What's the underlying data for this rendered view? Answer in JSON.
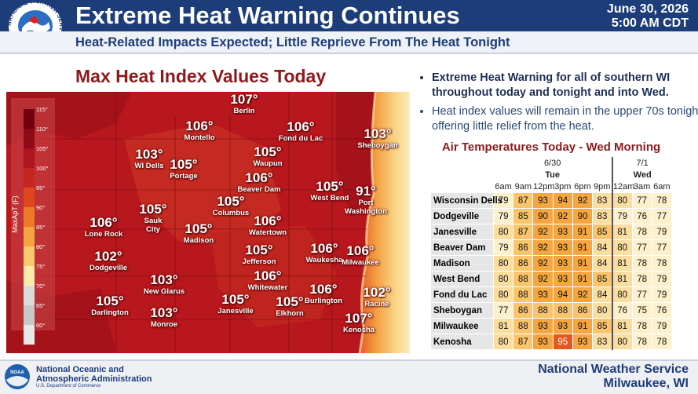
{
  "header": {
    "logo_text": "NATIONAL WEATHER SERVICE",
    "title": "Extreme Heat Warning Continues",
    "subtitle": "Heat-Related Impacts Expected; Little Reprieve From The Heat Tonight",
    "date": "June 30, 2026",
    "time": "5:00 AM CDT"
  },
  "map": {
    "title": "Max Heat Index Values Today",
    "legend": {
      "label": "MaxApT (F)",
      "ticks": [
        "115°",
        "110°",
        "105°",
        "100°",
        "95°",
        "90°",
        "85°",
        "80°",
        "75°",
        "70°",
        "65°",
        "60°"
      ]
    },
    "points": [
      {
        "value": "107°",
        "place": "Berlin"
      },
      {
        "value": "106°",
        "place": "Montello"
      },
      {
        "value": "106°",
        "place": "Fond du Lac"
      },
      {
        "value": "103°",
        "place": "Sheboygan"
      },
      {
        "value": "103°",
        "place": "WI Dells"
      },
      {
        "value": "105°",
        "place": "Portage"
      },
      {
        "value": "105°",
        "place": "Waupun"
      },
      {
        "value": "106°",
        "place": "Beaver Dam"
      },
      {
        "value": "105°",
        "place": "West Bend"
      },
      {
        "value": "91°",
        "place": "Port Washington"
      },
      {
        "value": "105°",
        "place": "Columbus"
      },
      {
        "value": "105°",
        "place": "Sauk City"
      },
      {
        "value": "106°",
        "place": "Lone Rock"
      },
      {
        "value": "106°",
        "place": "Watertown"
      },
      {
        "value": "105°",
        "place": "Madison"
      },
      {
        "value": "102°",
        "place": "Dodgeville"
      },
      {
        "value": "105°",
        "place": "Jefferson"
      },
      {
        "value": "106°",
        "place": "Waukesha"
      },
      {
        "value": "106°",
        "place": "Milwaukee"
      },
      {
        "value": "103°",
        "place": "New Glarus"
      },
      {
        "value": "106°",
        "place": "Whitewater"
      },
      {
        "value": "105°",
        "place": "Darlington"
      },
      {
        "value": "105°",
        "place": "Janesville"
      },
      {
        "value": "105°",
        "place": "Elkhorn"
      },
      {
        "value": "106°",
        "place": "Burlington"
      },
      {
        "value": "102°",
        "place": "Racine"
      },
      {
        "value": "103°",
        "place": "Monroe"
      },
      {
        "value": "107°",
        "place": "Kenosha"
      }
    ]
  },
  "bullets": [
    "Extreme Heat Warning for all of southern WI throughout today and tonight and into Wed.",
    "Heat index values will remain in the upper 70s tonight, offering little relief from the heat."
  ],
  "table": {
    "title": "Air Temperatures Today - Wed Morning",
    "dates": [
      "6/30",
      "7/1"
    ],
    "days": [
      "Tue",
      "Wed"
    ],
    "times": [
      "6am",
      "9am",
      "12pm",
      "3pm",
      "6pm",
      "9pm",
      "12am",
      "3am",
      "6am"
    ],
    "rows": [
      {
        "location": "Wisconsin Dells",
        "temps": [
          79,
          87,
          93,
          94,
          92,
          83,
          80,
          77,
          78
        ]
      },
      {
        "location": "Dodgeville",
        "temps": [
          79,
          85,
          90,
          92,
          90,
          83,
          79,
          76,
          77
        ]
      },
      {
        "location": "Janesville",
        "temps": [
          80,
          87,
          92,
          93,
          91,
          85,
          81,
          78,
          79
        ]
      },
      {
        "location": "Beaver Dam",
        "temps": [
          79,
          86,
          92,
          93,
          91,
          84,
          80,
          77,
          77
        ]
      },
      {
        "location": "Madison",
        "temps": [
          80,
          86,
          92,
          93,
          91,
          84,
          81,
          78,
          78
        ]
      },
      {
        "location": "West Bend",
        "temps": [
          80,
          88,
          92,
          93,
          91,
          85,
          81,
          78,
          79
        ]
      },
      {
        "location": "Fond du Lac",
        "temps": [
          80,
          88,
          93,
          94,
          92,
          84,
          80,
          77,
          79
        ]
      },
      {
        "location": "Sheboygan",
        "temps": [
          77,
          86,
          88,
          88,
          86,
          80,
          76,
          75,
          76
        ]
      },
      {
        "location": "Milwaukee",
        "temps": [
          81,
          88,
          93,
          93,
          91,
          85,
          81,
          78,
          79
        ]
      },
      {
        "location": "Kenosha",
        "temps": [
          80,
          87,
          93,
          95,
          93,
          83,
          80,
          78,
          78
        ]
      }
    ]
  },
  "footer": {
    "logo_text": "NOAA",
    "agency_lines": [
      "National Oceanic and",
      "Atmospheric Administration"
    ],
    "department": "U.S. Department of Commerce",
    "office": "National Weather Service",
    "location": "Milwaukee, WI"
  }
}
